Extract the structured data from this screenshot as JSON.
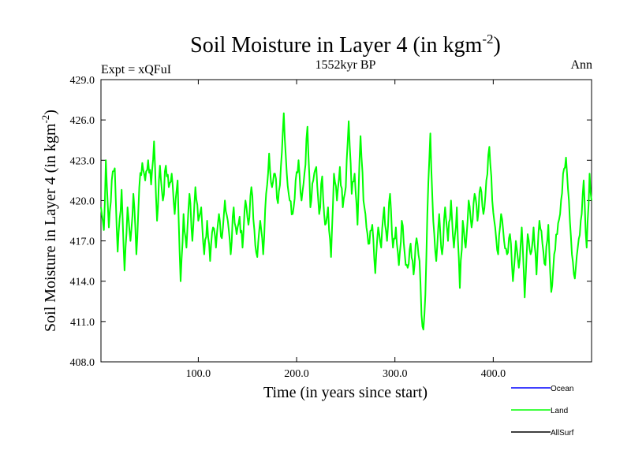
{
  "chart_data": {
    "type": "line",
    "title_main": "Soil Moisture in Layer 4 (in kgm",
    "title_sup": "-2",
    "title_close": ")",
    "subtitle": "1552kyr BP",
    "left_label": "Expt = xQFuI",
    "right_label": "Ann",
    "xlabel": "Time (in years since start)",
    "ylabel_main": "Soil Moisture in Layer 4 (in kgm",
    "ylabel_sup": "-2",
    "ylabel_close": ")",
    "xlim": [
      1,
      500
    ],
    "ylim": [
      408.0,
      429.0
    ],
    "x_ticks": [
      100,
      200,
      300,
      400
    ],
    "x_tick_labels": [
      "100.0",
      "200.0",
      "300.0",
      "400.0"
    ],
    "y_ticks": [
      408,
      411,
      414,
      417,
      420,
      423,
      426,
      429
    ],
    "y_tick_labels": [
      "408.0",
      "411.0",
      "414.0",
      "417.0",
      "420.0",
      "423.0",
      "426.0",
      "429.0"
    ],
    "legend": [
      {
        "name": "Ocean",
        "color": "#0000ff"
      },
      {
        "name": "Land",
        "color": "#00ff00"
      },
      {
        "name": "AllSurf",
        "color": "#000000"
      }
    ],
    "series": [
      {
        "name": "Land",
        "color": "#00ff00",
        "anchors": [
          [
            1,
            419.5
          ],
          [
            4,
            417.8
          ],
          [
            6,
            423.0
          ],
          [
            9,
            418.0
          ],
          [
            12,
            421.5
          ],
          [
            15,
            422.4
          ],
          [
            18,
            416.2
          ],
          [
            22,
            420.8
          ],
          [
            25,
            414.8
          ],
          [
            28,
            419.5
          ],
          [
            31,
            417.0
          ],
          [
            34,
            420.5
          ],
          [
            37,
            416.0
          ],
          [
            40,
            421.0
          ],
          [
            43,
            422.8
          ],
          [
            46,
            421.5
          ],
          [
            49,
            423.0
          ],
          [
            52,
            421.2
          ],
          [
            55,
            424.4
          ],
          [
            58,
            418.5
          ],
          [
            61,
            422.6
          ],
          [
            64,
            420.0
          ],
          [
            67,
            422.6
          ],
          [
            70,
            421.0
          ],
          [
            73,
            422.0
          ],
          [
            76,
            419.0
          ],
          [
            79,
            421.5
          ],
          [
            82,
            414.0
          ],
          [
            85,
            419.0
          ],
          [
            88,
            416.5
          ],
          [
            91,
            420.5
          ],
          [
            94,
            417.0
          ],
          [
            97,
            421.0
          ],
          [
            100,
            418.5
          ],
          [
            103,
            419.5
          ],
          [
            106,
            416.0
          ],
          [
            109,
            418.5
          ],
          [
            112,
            415.5
          ],
          [
            115,
            418.0
          ],
          [
            118,
            416.5
          ],
          [
            121,
            419.0
          ],
          [
            124,
            417.2
          ],
          [
            127,
            420.0
          ],
          [
            130,
            418.5
          ],
          [
            133,
            416.0
          ],
          [
            136,
            419.5
          ],
          [
            139,
            417.5
          ],
          [
            142,
            418.8
          ],
          [
            145,
            416.5
          ],
          [
            148,
            420.0
          ],
          [
            151,
            418.2
          ],
          [
            154,
            421.0
          ],
          [
            157,
            417.8
          ],
          [
            160,
            415.8
          ],
          [
            163,
            418.5
          ],
          [
            166,
            416.0
          ],
          [
            169,
            420.5
          ],
          [
            172,
            423.5
          ],
          [
            175,
            421.0
          ],
          [
            178,
            422.0
          ],
          [
            181,
            419.8
          ],
          [
            184,
            422.5
          ],
          [
            187,
            426.5
          ],
          [
            190,
            422.0
          ],
          [
            193,
            420.0
          ],
          [
            196,
            419.0
          ],
          [
            199,
            421.5
          ],
          [
            202,
            423.0
          ],
          [
            205,
            420.0
          ],
          [
            208,
            422.0
          ],
          [
            211,
            425.5
          ],
          [
            214,
            419.5
          ],
          [
            217,
            421.5
          ],
          [
            220,
            422.5
          ],
          [
            223,
            419.0
          ],
          [
            226,
            421.8
          ],
          [
            229,
            418.2
          ],
          [
            232,
            419.5
          ],
          [
            235,
            415.8
          ],
          [
            238,
            422.0
          ],
          [
            241,
            420.0
          ],
          [
            244,
            422.5
          ],
          [
            247,
            419.5
          ],
          [
            250,
            421.0
          ],
          [
            253,
            425.9
          ],
          [
            256,
            420.5
          ],
          [
            259,
            422.0
          ],
          [
            262,
            418.2
          ],
          [
            265,
            424.8
          ],
          [
            268,
            420.0
          ],
          [
            271,
            418.0
          ],
          [
            274,
            416.8
          ],
          [
            277,
            418.2
          ],
          [
            280,
            414.6
          ],
          [
            283,
            418.0
          ],
          [
            286,
            416.5
          ],
          [
            289,
            419.5
          ],
          [
            292,
            417.0
          ],
          [
            295,
            420.5
          ],
          [
            298,
            416.5
          ],
          [
            301,
            418.0
          ],
          [
            304,
            415.2
          ],
          [
            307,
            418.5
          ],
          [
            310,
            416.0
          ],
          [
            313,
            415.0
          ],
          [
            316,
            416.8
          ],
          [
            319,
            414.5
          ],
          [
            322,
            417.2
          ],
          [
            325,
            415.5
          ],
          [
            327,
            411.5
          ],
          [
            329,
            410.4
          ],
          [
            331,
            413.0
          ],
          [
            333,
            419.0
          ],
          [
            336,
            425.0
          ],
          [
            339,
            418.5
          ],
          [
            342,
            415.5
          ],
          [
            345,
            419.0
          ],
          [
            348,
            416.0
          ],
          [
            351,
            419.5
          ],
          [
            354,
            417.0
          ],
          [
            357,
            420.0
          ],
          [
            360,
            416.5
          ],
          [
            363,
            419.5
          ],
          [
            366,
            413.5
          ],
          [
            369,
            418.5
          ],
          [
            372,
            416.5
          ],
          [
            375,
            420.0
          ],
          [
            378,
            418.0
          ],
          [
            381,
            420.5
          ],
          [
            384,
            418.5
          ],
          [
            387,
            421.0
          ],
          [
            390,
            419.0
          ],
          [
            393,
            421.5
          ],
          [
            396,
            424.0
          ],
          [
            399,
            420.0
          ],
          [
            402,
            418.0
          ],
          [
            405,
            416.0
          ],
          [
            408,
            419.0
          ],
          [
            411,
            417.0
          ],
          [
            414,
            416.0
          ],
          [
            417,
            417.5
          ],
          [
            420,
            414.0
          ],
          [
            423,
            417.0
          ],
          [
            426,
            415.0
          ],
          [
            429,
            418.0
          ],
          [
            432,
            412.8
          ],
          [
            435,
            417.5
          ],
          [
            438,
            416.0
          ],
          [
            441,
            418.0
          ],
          [
            444,
            414.5
          ],
          [
            447,
            418.5
          ],
          [
            450,
            416.8
          ],
          [
            453,
            415.2
          ],
          [
            456,
            418.2
          ],
          [
            459,
            413.2
          ],
          [
            462,
            416.0
          ],
          [
            465,
            417.5
          ],
          [
            468,
            419.0
          ],
          [
            471,
            422.0
          ],
          [
            474,
            423.2
          ],
          [
            477,
            420.0
          ],
          [
            480,
            416.0
          ],
          [
            483,
            414.2
          ],
          [
            486,
            416.5
          ],
          [
            489,
            418.5
          ],
          [
            492,
            421.5
          ],
          [
            495,
            416.5
          ],
          [
            498,
            422.0
          ],
          [
            500,
            420.0
          ]
        ]
      }
    ]
  }
}
